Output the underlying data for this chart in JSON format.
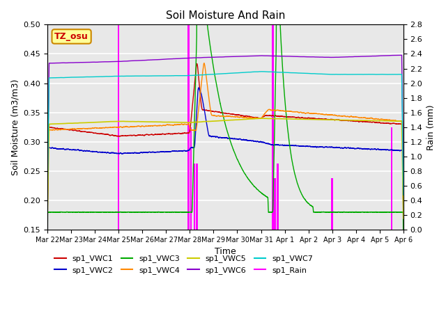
{
  "title": "Soil Moisture And Rain",
  "xlabel": "Time",
  "ylabel_left": "Soil Moisture (m3/m3)",
  "ylabel_right": "Rain (mm)",
  "ylim_left": [
    0.15,
    0.5
  ],
  "ylim_right": [
    0.0,
    2.8
  ],
  "station_label": "TZ_osu",
  "station_label_color": "#cc0000",
  "station_box_color": "#ffff99",
  "background_color": "#e8e8e8",
  "tick_labels": [
    "Mar 22",
    "Mar 23",
    "Mar 24",
    "Mar 25",
    "Mar 26",
    "Mar 27",
    "Mar 28",
    "Mar 29",
    "Mar 30",
    "Mar 31",
    "Apr 1",
    "Apr 2",
    "Apr 3",
    "Apr 4",
    "Apr 5",
    "Apr 6"
  ],
  "colors": {
    "VWC1": "#cc0000",
    "VWC2": "#0000cc",
    "VWC3": "#00aa00",
    "VWC4": "#ff8800",
    "VWC5": "#cccc00",
    "VWC6": "#8800cc",
    "VWC7": "#00cccc",
    "Rain": "#ff00ff"
  },
  "legend_entries": [
    [
      "sp1_VWC1",
      "#cc0000"
    ],
    [
      "sp1_VWC2",
      "#0000cc"
    ],
    [
      "sp1_VWC3",
      "#00aa00"
    ],
    [
      "sp1_VWC4",
      "#ff8800"
    ],
    [
      "sp1_VWC5",
      "#cccc00"
    ],
    [
      "sp1_VWC6",
      "#8800cc"
    ],
    [
      "sp1_VWC7",
      "#00cccc"
    ],
    [
      "sp1_Rain",
      "#ff00ff"
    ]
  ]
}
